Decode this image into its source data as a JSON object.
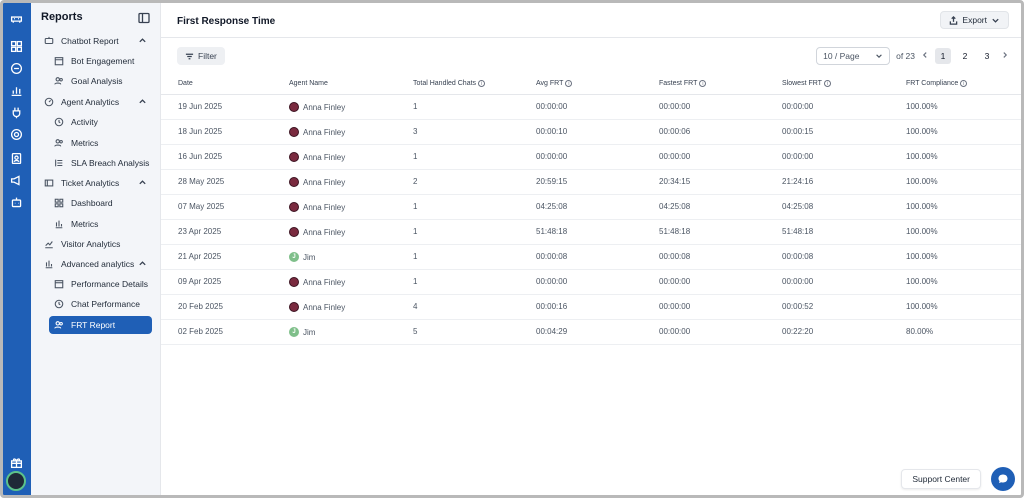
{
  "sidebar": {
    "title": "Reports",
    "groups": [
      {
        "label": "Chatbot Report",
        "items": [
          "Bot Engagement",
          "Goal Analysis"
        ]
      },
      {
        "label": "Agent Analytics",
        "items": [
          "Activity",
          "Metrics",
          "SLA Breach Analysis"
        ]
      },
      {
        "label": "Ticket Analytics",
        "items": [
          "Dashboard",
          "Metrics"
        ]
      },
      {
        "label": "Visitor Analytics",
        "items": []
      },
      {
        "label": "Advanced analytics",
        "items": [
          "Performance Details",
          "Chat Performance",
          "FRT Report"
        ]
      }
    ],
    "active_item": "FRT Report"
  },
  "header": {
    "title": "First Response Time",
    "export_label": "Export"
  },
  "toolbar": {
    "filter_label": "Filter",
    "page_size": "10 / Page",
    "of_pages": "of 23",
    "pages": [
      "1",
      "2",
      "3"
    ],
    "current_page": "1"
  },
  "table": {
    "columns": [
      "Date",
      "Agent Name",
      "Total Handled Chats",
      "Avg FRT",
      "Fastest FRT",
      "Slowest FRT",
      "FRT Compliance"
    ],
    "rows": [
      [
        "19 Jun 2025",
        "Anna Finley",
        "1",
        "00:00:00",
        "00:00:00",
        "00:00:00",
        "100.00%"
      ],
      [
        "18 Jun 2025",
        "Anna Finley",
        "3",
        "00:00:10",
        "00:00:06",
        "00:00:15",
        "100.00%"
      ],
      [
        "16 Jun 2025",
        "Anna Finley",
        "1",
        "00:00:00",
        "00:00:00",
        "00:00:00",
        "100.00%"
      ],
      [
        "28 May 2025",
        "Anna Finley",
        "2",
        "20:59:15",
        "20:34:15",
        "21:24:16",
        "100.00%"
      ],
      [
        "07 May 2025",
        "Anna Finley",
        "1",
        "04:25:08",
        "04:25:08",
        "04:25:08",
        "100.00%"
      ],
      [
        "23 Apr 2025",
        "Anna Finley",
        "1",
        "51:48:18",
        "51:48:18",
        "51:48:18",
        "100.00%"
      ],
      [
        "21 Apr 2025",
        "Jim",
        "1",
        "00:00:08",
        "00:00:08",
        "00:00:08",
        "100.00%"
      ],
      [
        "09 Apr 2025",
        "Anna Finley",
        "1",
        "00:00:00",
        "00:00:00",
        "00:00:00",
        "100.00%"
      ],
      [
        "20 Feb 2025",
        "Anna Finley",
        "4",
        "00:00:16",
        "00:00:00",
        "00:00:52",
        "100.00%"
      ],
      [
        "02 Feb 2025",
        "Jim",
        "5",
        "00:04:29",
        "00:00:00",
        "00:22:20",
        "80.00%"
      ]
    ]
  },
  "footer": {
    "support_label": "Support Center"
  },
  "colors": {
    "accent": "#1f5fb6",
    "sidebar_bg": "#f3f5f9"
  }
}
